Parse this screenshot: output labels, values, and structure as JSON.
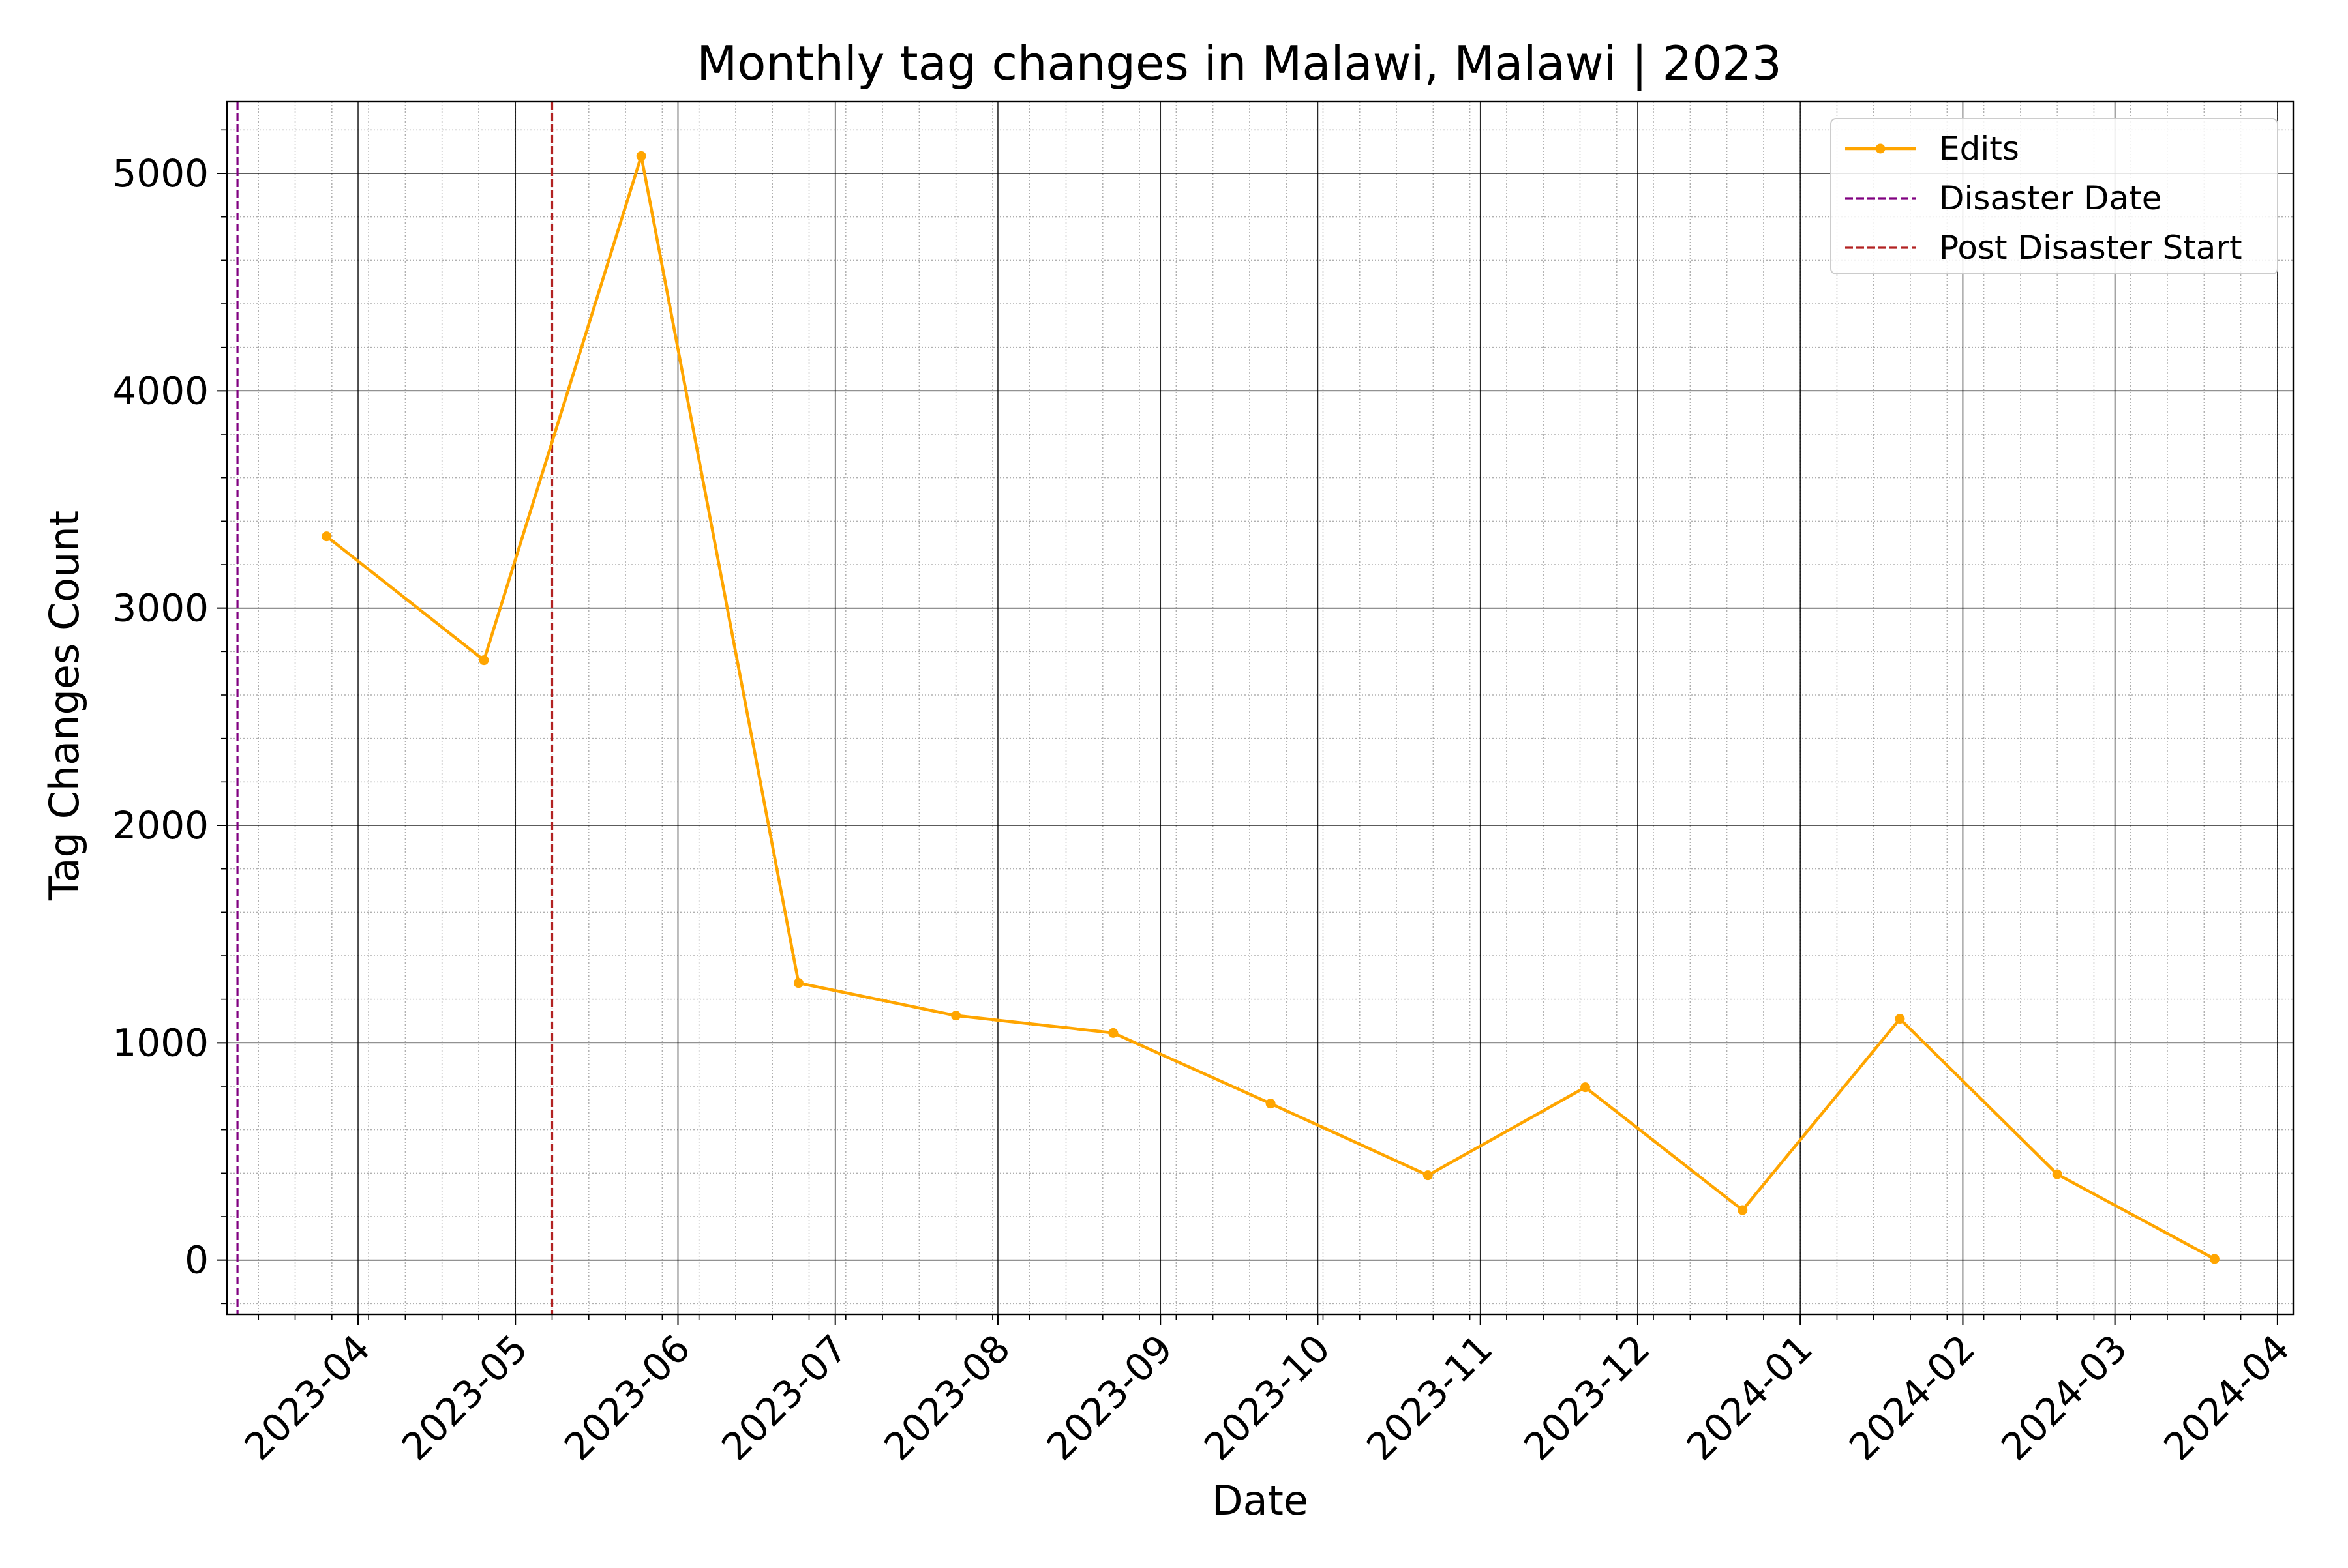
{
  "chart_data": {
    "type": "line",
    "title": "Monthly tag changes in Malawi, Malawi | 2023",
    "xlabel": "Date",
    "ylabel": "Tag Changes Count",
    "x_axis_type": "date",
    "xlim": [
      "2023-03-07",
      "2024-04-04"
    ],
    "ylim": [
      -250,
      5330
    ],
    "x_ticks": [
      "2023-04",
      "2023-05",
      "2023-06",
      "2023-07",
      "2023-08",
      "2023-09",
      "2023-10",
      "2023-11",
      "2023-12",
      "2024-01",
      "2024-02",
      "2024-03",
      "2024-04"
    ],
    "y_ticks": [
      "0",
      "1000",
      "2000",
      "3000",
      "4000",
      "5000"
    ],
    "grid": "major and minor",
    "legend_position": "top-right",
    "series": [
      {
        "name": "Edits",
        "color": "#FFA500",
        "marker": "circle",
        "x": [
          "2023-03-26",
          "2023-04-25",
          "2023-05-25",
          "2023-06-24",
          "2023-07-24",
          "2023-08-23",
          "2023-09-22",
          "2023-10-22",
          "2023-11-21",
          "2023-12-21",
          "2024-01-20",
          "2024-02-19",
          "2024-03-20"
        ],
        "values": [
          3330,
          2760,
          5080,
          1275,
          1125,
          1045,
          720,
          390,
          795,
          230,
          1110,
          395,
          5
        ]
      }
    ],
    "vlines": [
      {
        "name": "Disaster Date",
        "date": "2023-03-09",
        "color": "#800080",
        "style": "dashed"
      },
      {
        "name": "Post Disaster Start",
        "date": "2023-05-08",
        "color": "#B22222",
        "style": "dashed"
      }
    ]
  }
}
